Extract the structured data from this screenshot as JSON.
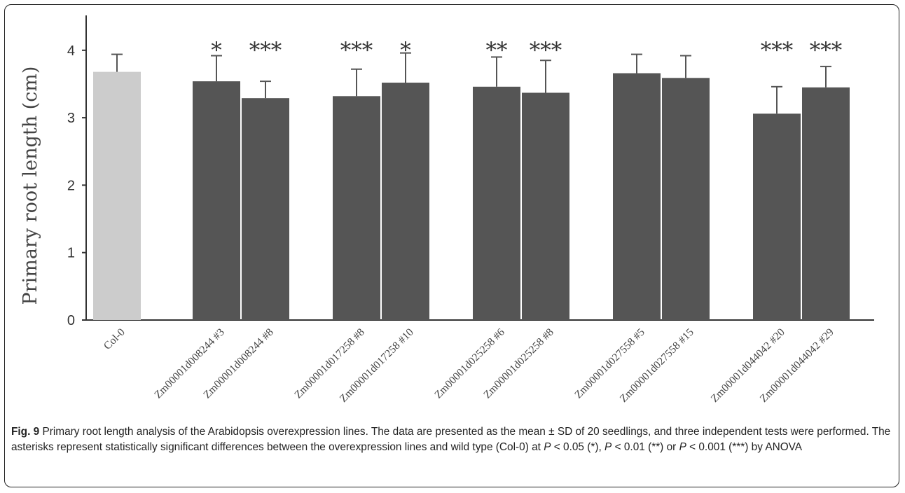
{
  "chart_data": {
    "type": "bar",
    "ylabel": "Primary root length (cm)",
    "xlabel": "",
    "ylim": [
      0,
      4.5
    ],
    "yticks": [
      "0",
      "1",
      "2",
      "3",
      "4"
    ],
    "categories": [
      "Col-0",
      "Zm00001d008244 #3",
      "Zm00001d008244 #8",
      "Zm00001d017258 #8",
      "Zm00001d017258 #10",
      "Zm00001d025258 #6",
      "Zm00001d025258 #8",
      "Zm00001d027558 #5",
      "Zm00001d027558 #15",
      "Zm00001d044042 #20",
      "Zm00001d044042 #29"
    ],
    "values": [
      3.68,
      3.54,
      3.29,
      3.32,
      3.52,
      3.46,
      3.37,
      3.66,
      3.59,
      3.06,
      3.45
    ],
    "errors": [
      0.26,
      0.38,
      0.25,
      0.4,
      0.44,
      0.44,
      0.48,
      0.28,
      0.33,
      0.4,
      0.31
    ],
    "significance": [
      "",
      "*",
      "***",
      "***",
      "*",
      "**",
      "***",
      "",
      "",
      "***",
      "***"
    ],
    "colors": {
      "control": "#cccccc",
      "lines": "#555555"
    },
    "grid": false,
    "legend": "none"
  },
  "caption": {
    "fig_label": "Fig. 9",
    "text_1": " Primary root length analysis of the Arabidopsis overexpression lines. The data are presented as the mean ± SD of 20 seedlings, and three independent tests were performed. The asterisks represent statistically significant differences between the overexpression lines and wild type (Col-0) at ",
    "p1_symbol": "P",
    "p1_rest": " < 0.05 (*), ",
    "p2_symbol": "P",
    "p2_rest": " < 0.01 (**) or ",
    "p3_symbol": "P",
    "p3_rest": " < 0.001 (***) by ANOVA"
  }
}
